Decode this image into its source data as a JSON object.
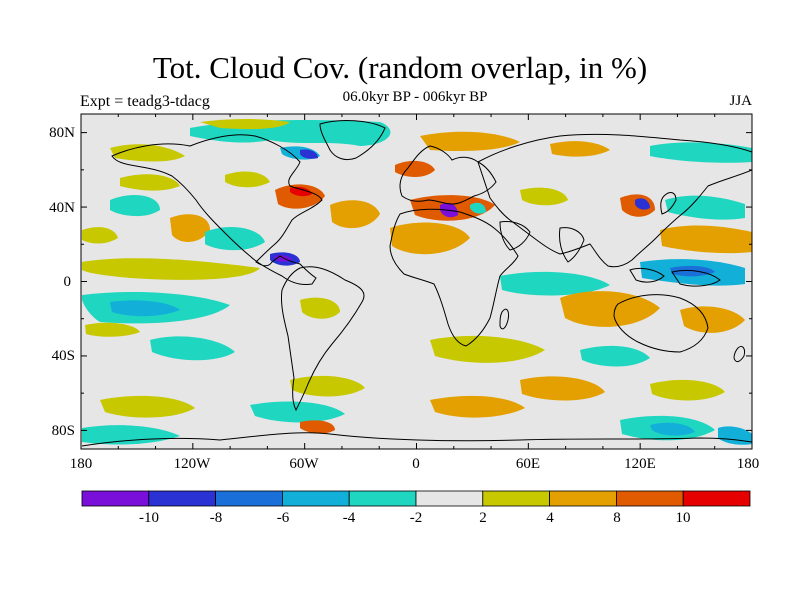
{
  "title": "Tot. Cloud Cov. (random overlap, in %)",
  "subtitle": "06.0kyr BP - 006kyr BP",
  "experiment_label": "Expt = teadg3-tdacg",
  "season_label": "JJA",
  "lat_labels": [
    "80N",
    "40N",
    "0",
    "40S",
    "80S"
  ],
  "lon_labels": [
    "180",
    "120W",
    "60W",
    "0",
    "60E",
    "120E",
    "180"
  ],
  "colorbar": {
    "colors": [
      "#7a0fd9",
      "#2a32d4",
      "#1a70d8",
      "#12b0d8",
      "#1fd6c0",
      "#e6e6e6",
      "#c7c800",
      "#e3a000",
      "#e05a00",
      "#e60000"
    ],
    "labels": [
      "-10",
      "-8",
      "-6",
      "-4",
      "-2",
      "2",
      "4",
      "8",
      "10"
    ]
  },
  "map": {
    "background_color": "#e6e6e6",
    "coastline_color": "#000000"
  }
}
